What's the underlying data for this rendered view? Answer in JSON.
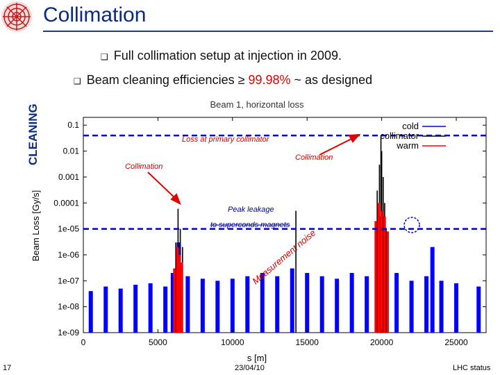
{
  "slide": {
    "title": "Collimation",
    "side_label": "CLEANING",
    "bullets": [
      {
        "pre": "Full collimation setup at injection in 2009.",
        "highlight": "",
        "post": ""
      },
      {
        "pre": "Beam cleaning efficiencies ≥ ",
        "highlight": "99.98%",
        "post": " ~ as designed"
      }
    ],
    "footer": {
      "page": "17",
      "date": "23/04/10",
      "right": "LHC status"
    }
  },
  "colors": {
    "title": "#0b2a7a",
    "cold": "#0000ff",
    "collimator": "#000000",
    "warm": "#ff0000",
    "annotation_line": "#0000cc",
    "arrow": "#e00000"
  },
  "chart_data": {
    "type": "area",
    "title": "Beam 1, horizontal loss",
    "xlabel": "s [m]",
    "ylabel": "Beam Loss [Gy/s]",
    "yscale": "log",
    "xlim": [
      0,
      27000
    ],
    "ylim": [
      1e-09,
      0.2
    ],
    "x_ticks": [
      0,
      5000,
      10000,
      15000,
      20000,
      25000
    ],
    "x_tick_labels": [
      "0",
      "5000",
      "10000",
      "15000",
      "20000",
      "25000"
    ],
    "y_ticks": [
      1e-09,
      1e-08,
      1e-07,
      1e-06,
      1e-05,
      0.0001,
      0.001,
      0.01,
      0.1
    ],
    "y_tick_labels": [
      "1e-09",
      "1e-08",
      "1e-07",
      "1e-06",
      "1e-05",
      "0.0001",
      "0.001",
      "0.01",
      "0.1"
    ],
    "legend": {
      "position": "top-right",
      "entries": [
        "cold",
        "collimator",
        "warm"
      ]
    },
    "series": [
      {
        "name": "cold",
        "color": "#0000ff",
        "points": [
          [
            500,
            4e-08
          ],
          [
            1500,
            6e-08
          ],
          [
            2500,
            5e-08
          ],
          [
            3500,
            7e-08
          ],
          [
            4500,
            8e-08
          ],
          [
            5500,
            6e-08
          ],
          [
            6000,
            2e-07
          ],
          [
            6400,
            3e-06
          ],
          [
            7000,
            1.5e-07
          ],
          [
            8000,
            1.2e-07
          ],
          [
            9000,
            1e-07
          ],
          [
            10000,
            1.2e-07
          ],
          [
            11000,
            1.5e-07
          ],
          [
            12000,
            2e-07
          ],
          [
            13000,
            1.5e-07
          ],
          [
            14000,
            3e-07
          ],
          [
            15000,
            2e-07
          ],
          [
            16000,
            1.5e-07
          ],
          [
            17000,
            1.2e-07
          ],
          [
            18000,
            2e-07
          ],
          [
            19000,
            1.5e-07
          ],
          [
            20000,
            3e-05
          ],
          [
            21000,
            2e-07
          ],
          [
            22000,
            1e-07
          ],
          [
            23000,
            1.5e-07
          ],
          [
            23400,
            2e-06
          ],
          [
            24000,
            1e-07
          ],
          [
            25000,
            8e-08
          ],
          [
            26500,
            6e-08
          ]
        ]
      },
      {
        "name": "collimator",
        "color": "#000000",
        "points": [
          [
            6200,
            3e-06
          ],
          [
            6350,
            6e-05
          ],
          [
            6500,
            1e-05
          ],
          [
            6650,
            2e-06
          ],
          [
            14250,
            5e-05
          ],
          [
            19700,
            0.0003
          ],
          [
            19850,
            0.003
          ],
          [
            19950,
            0.04
          ],
          [
            20000,
            0.01
          ],
          [
            20100,
            0.001
          ],
          [
            20200,
            0.0001
          ],
          [
            20300,
            1e-05
          ]
        ]
      },
      {
        "name": "warm",
        "color": "#ff0000",
        "points": [
          [
            6100,
            3e-07
          ],
          [
            6300,
            2e-06
          ],
          [
            6450,
            1e-06
          ],
          [
            6600,
            5e-07
          ],
          [
            19600,
            2e-05
          ],
          [
            19800,
            0.0001
          ],
          [
            20000,
            5e-05
          ],
          [
            20200,
            3e-05
          ],
          [
            20400,
            8e-06
          ]
        ]
      }
    ],
    "reference_lines": [
      {
        "label": "",
        "y": 0.04
      },
      {
        "label": "",
        "y": 1e-05
      }
    ],
    "annotations": [
      {
        "text": "Loss at primary collimator",
        "style": "italic"
      },
      {
        "text": "Collimation",
        "style": "italic"
      },
      {
        "text": "Collimation",
        "style": "italic"
      },
      {
        "text": "Peak leakage",
        "style": "italic"
      },
      {
        "text": "to superconds magnets",
        "style": "italic, struck-through"
      },
      {
        "text": "Measurement noise",
        "style": "italic, rotated"
      }
    ],
    "highlight_circle_at_x": 23400
  }
}
